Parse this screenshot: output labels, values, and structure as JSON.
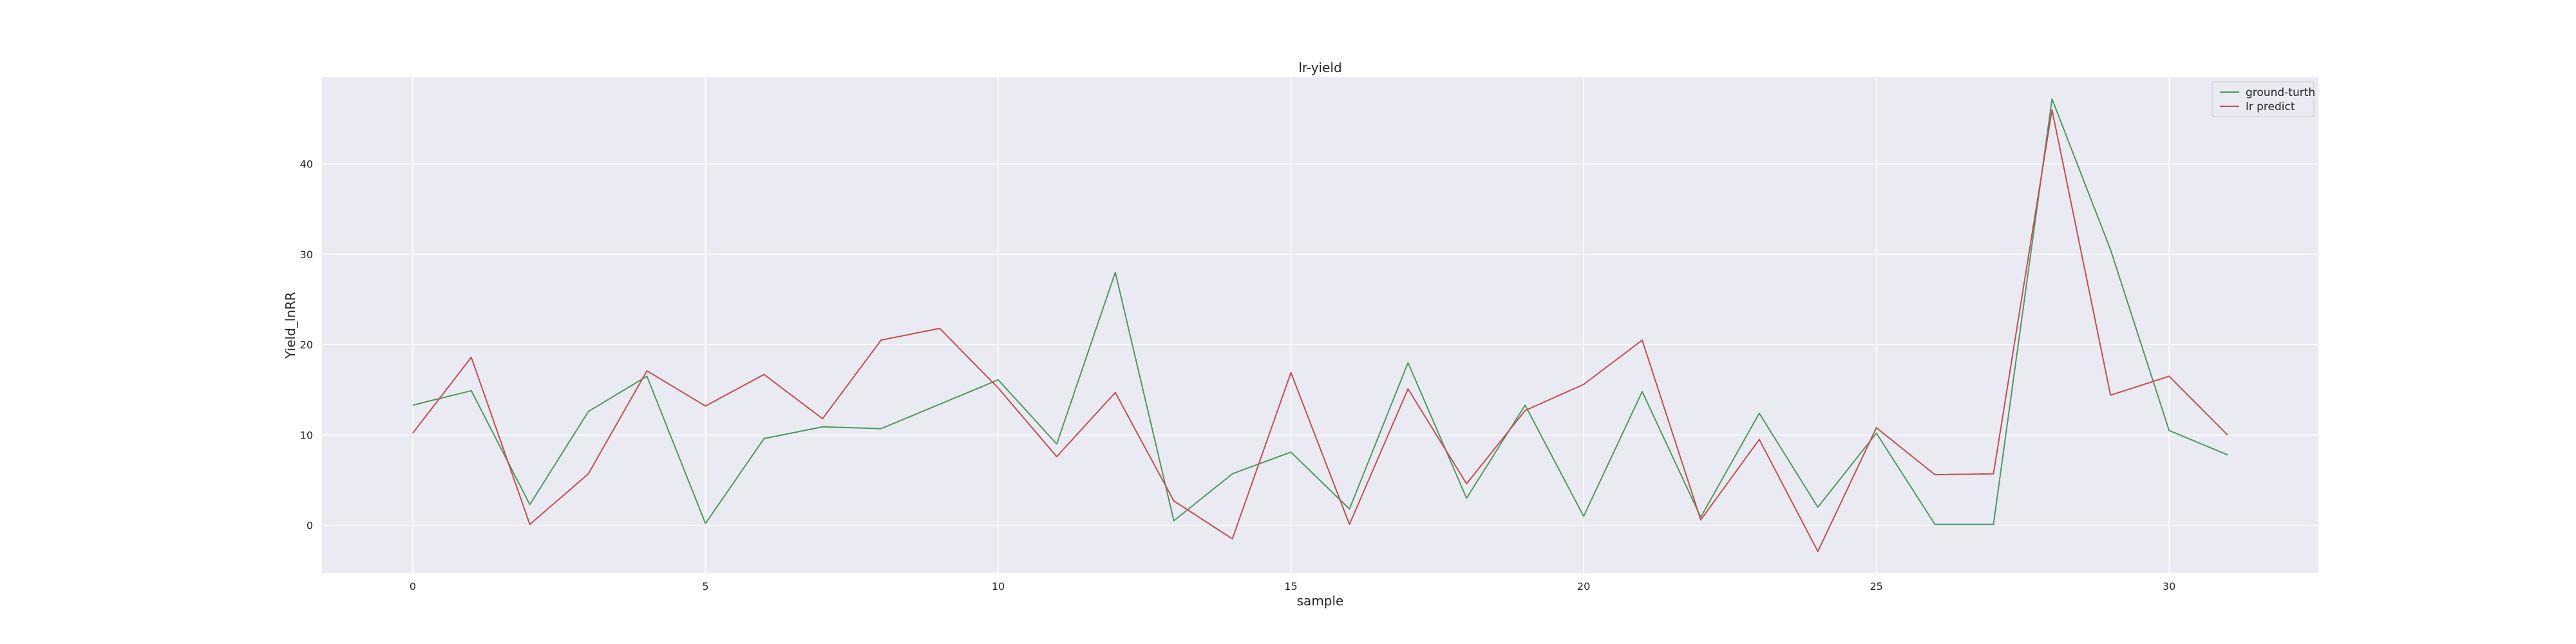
{
  "chart_data": {
    "type": "line",
    "title": "lr-yield",
    "xlabel": "sample",
    "ylabel": "Yield_lnRR",
    "xlim": [
      -1.55,
      32.55
    ],
    "ylim": [
      -5.3,
      49.6
    ],
    "x_ticks": [
      0,
      5,
      10,
      15,
      20,
      25,
      30
    ],
    "y_ticks": [
      0,
      10,
      20,
      30,
      40
    ],
    "grid": true,
    "legend_position": "top-right",
    "x": [
      0,
      1,
      2,
      3,
      4,
      5,
      6,
      7,
      8,
      9,
      10,
      11,
      12,
      13,
      14,
      15,
      16,
      17,
      18,
      19,
      20,
      21,
      22,
      23,
      24,
      25,
      26,
      27,
      28,
      29,
      30,
      31
    ],
    "series": [
      {
        "name": "ground-turth",
        "color": "#4c9a5d",
        "values": [
          13.3,
          14.9,
          2.3,
          12.6,
          16.5,
          0.2,
          9.6,
          10.9,
          10.7,
          13.4,
          16.1,
          9.0,
          28.0,
          0.5,
          5.7,
          8.1,
          1.8,
          18.0,
          3.0,
          13.3,
          1.0,
          14.8,
          0.9,
          12.4,
          2.0,
          10.2,
          0.1,
          0.1,
          47.2,
          30.5,
          10.5,
          7.8
        ]
      },
      {
        "name": "lr predict",
        "color": "#c44e52",
        "values": [
          10.2,
          18.6,
          0.1,
          5.7,
          17.1,
          13.2,
          16.7,
          11.8,
          20.5,
          21.8,
          15.2,
          7.6,
          14.7,
          2.7,
          -1.5,
          16.9,
          0.1,
          15.1,
          4.6,
          12.7,
          15.6,
          20.5,
          0.6,
          9.5,
          -2.9,
          10.8,
          5.6,
          5.7,
          46.0,
          14.4,
          16.5,
          10.0
        ]
      }
    ]
  }
}
